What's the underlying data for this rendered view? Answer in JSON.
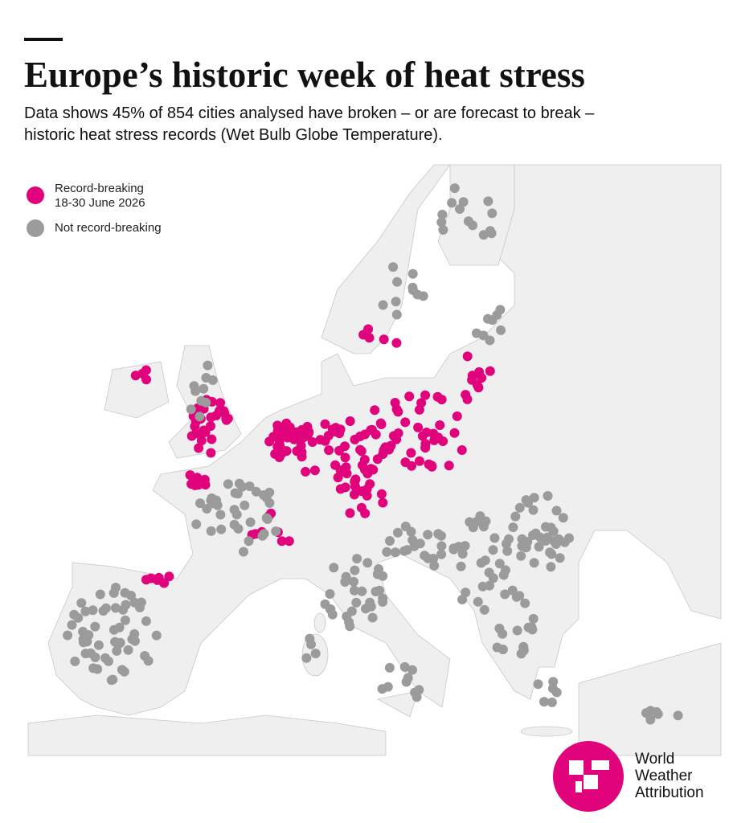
{
  "header": {
    "title": "Europe’s historic week of heat stress",
    "subtitle_lines": [
      "Data shows 45% of 854 cities analysed have broken – or are forecast to break –",
      "historic heat stress records (Wet Bulb Globe Temperature)."
    ]
  },
  "legend": [
    {
      "label": "Record-breaking",
      "sublabel": "18-30 June 2026",
      "color": "#e0037c"
    },
    {
      "label": "Not record-breaking",
      "color": "#9b9b9b"
    }
  ],
  "logo": {
    "lines": [
      "World",
      "Weather",
      "Attribution"
    ]
  }
}
